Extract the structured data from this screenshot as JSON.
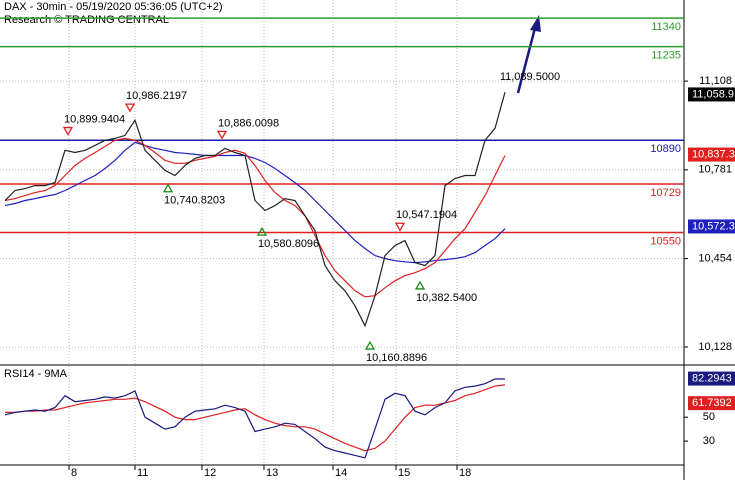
{
  "chart_data": [
    {
      "type": "line",
      "title": "DAX - 30min - 05/19/2020 05:36:05 (UTC+2)",
      "subtitle": "Research © TRADING CENTRAL",
      "x": [
        0,
        1,
        2,
        3,
        4,
        5,
        6,
        7,
        8,
        9,
        10,
        11,
        12,
        13,
        14,
        15,
        16,
        17,
        18,
        19,
        20,
        21,
        22,
        23,
        24,
        25,
        26,
        27,
        28,
        29,
        30,
        31,
        32,
        33,
        34,
        35,
        36,
        37,
        38,
        39,
        40,
        41,
        42,
        43,
        44,
        45,
        46,
        47,
        48,
        49,
        50
      ],
      "xlim": [
        -0.5,
        67.9
      ],
      "xticks": [
        {
          "value": 6.4,
          "label": "8"
        },
        {
          "value": 13,
          "label": "11"
        },
        {
          "value": 19.7,
          "label": "12"
        },
        {
          "value": 25.9,
          "label": "13"
        },
        {
          "value": 32.8,
          "label": "14"
        },
        {
          "value": 39.1,
          "label": "15"
        },
        {
          "value": 45.2,
          "label": "18"
        }
      ],
      "ylim": [
        10069,
        11407
      ],
      "yticks": [
        {
          "value": 11108,
          "label": "11,108"
        },
        {
          "value": 10781,
          "label": "10,781"
        },
        {
          "value": 10454,
          "label": "10,454"
        },
        {
          "value": 10128,
          "label": "10,128"
        }
      ],
      "grid": true,
      "series": [
        {
          "color": "#222222",
          "values": [
            10668,
            10705,
            10712,
            10723,
            10723,
            10734,
            10853,
            10845,
            10853,
            10871,
            10890,
            10897,
            10908,
            10964,
            10853,
            10816,
            10779,
            10760,
            10797,
            10823,
            10834,
            10834,
            10860,
            10845,
            10834,
            10668,
            10631,
            10649,
            10675,
            10668,
            10612,
            10557,
            10428,
            10372,
            10335,
            10280,
            10206,
            10317,
            10465,
            10502,
            10520,
            10439,
            10428,
            10465,
            10723,
            10749,
            10760,
            10760,
            10890,
            10934,
            11067
          ]
        },
        {
          "color": "#e02020",
          "values": [
            10668,
            10675,
            10686,
            10697,
            10705,
            10723,
            10760,
            10797,
            10823,
            10845,
            10867,
            10890,
            10897,
            10890,
            10871,
            10845,
            10816,
            10805,
            10805,
            10816,
            10823,
            10831,
            10845,
            10853,
            10842,
            10797,
            10742,
            10697,
            10668,
            10649,
            10612,
            10539,
            10465,
            10409,
            10372,
            10335,
            10313,
            10317,
            10346,
            10372,
            10391,
            10402,
            10417,
            10439,
            10483,
            10527,
            10564,
            10624,
            10686,
            10760,
            10834
          ]
        },
        {
          "color": "#2020c0",
          "values": [
            10649,
            10657,
            10668,
            10675,
            10683,
            10690,
            10705,
            10723,
            10742,
            10760,
            10786,
            10816,
            10853,
            10882,
            10871,
            10860,
            10853,
            10845,
            10842,
            10838,
            10834,
            10834,
            10834,
            10834,
            10834,
            10823,
            10808,
            10786,
            10760,
            10734,
            10705,
            10668,
            10631,
            10594,
            10557,
            10520,
            10491,
            10465,
            10454,
            10446,
            10442,
            10439,
            10442,
            10446,
            10450,
            10454,
            10461,
            10476,
            10502,
            10527,
            10564
          ]
        }
      ],
      "levels": [
        {
          "value": 11340,
          "color": "#2e9e2e"
        },
        {
          "value": 11235,
          "color": "#2e9e2e"
        },
        {
          "value": 10890,
          "color": "#1a1ab0"
        },
        {
          "value": 10729,
          "color": "#e02020"
        },
        {
          "value": 10550,
          "color": "#e02020"
        }
      ],
      "price_labels": [
        {
          "value": 11058.9,
          "label": "11,058.9",
          "color": "#000000"
        },
        {
          "value": 10837.3,
          "label": "10,837.3",
          "color": "#e02020"
        },
        {
          "value": 10572.3,
          "label": "10,572.3",
          "color": "#2020c0"
        }
      ],
      "annotations": [
        {
          "x": 6.3,
          "value": 10899.9404,
          "label": "10,899.9404",
          "kind": "high"
        },
        {
          "x": 12.5,
          "value": 10986.2197,
          "label": "10,986.2197",
          "kind": "high"
        },
        {
          "x": 21.7,
          "value": 10886.0098,
          "label": "10,886.0098",
          "kind": "high"
        },
        {
          "x": 16.3,
          "value": 10740.8203,
          "label": "10,740.8203",
          "kind": "low"
        },
        {
          "x": 25.7,
          "value": 10580.8096,
          "label": "10,580.8096",
          "kind": "low"
        },
        {
          "x": 39.5,
          "value": 10547.1904,
          "label": "10,547.1904",
          "kind": "high"
        },
        {
          "x": 41.5,
          "value": 10382.54,
          "label": "10,382.5400",
          "kind": "low"
        },
        {
          "x": 36.5,
          "value": 10160.8896,
          "label": "10,160.8896",
          "kind": "low"
        }
      ],
      "target": {
        "x": 52.5,
        "value": 11089.5,
        "label": "11,089.5000"
      }
    },
    {
      "type": "line",
      "title": "RSI14 - 9MA",
      "xlim": [
        -0.5,
        67.9
      ],
      "ylim": [
        10,
        92
      ],
      "yticks": [
        50,
        30
      ],
      "series": [
        {
          "color": "#1a1a80",
          "values": [
            52,
            54,
            55,
            56,
            55,
            58,
            68,
            63,
            64,
            65,
            67,
            66,
            68,
            72,
            50,
            45,
            40,
            42,
            50,
            55,
            56,
            57,
            60,
            58,
            55,
            38,
            40,
            42,
            45,
            44,
            38,
            32,
            25,
            22,
            20,
            18,
            16,
            40,
            65,
            70,
            68,
            55,
            52,
            58,
            62,
            72,
            75,
            76,
            78,
            82,
            82
          ]
        },
        {
          "color": "#e02020",
          "values": [
            54,
            54,
            55,
            55,
            56,
            56,
            58,
            60,
            62,
            63,
            64,
            65,
            65,
            66,
            63,
            59,
            55,
            50,
            48,
            48,
            50,
            52,
            54,
            56,
            57,
            52,
            48,
            45,
            43,
            42,
            42,
            40,
            36,
            32,
            28,
            25,
            22,
            24,
            30,
            40,
            50,
            58,
            60,
            60,
            62,
            64,
            68,
            70,
            73,
            76,
            77
          ]
        }
      ],
      "price_labels": [
        {
          "value": 82.2943,
          "color": "#1a1a80"
        },
        {
          "value": 61.7392,
          "color": "#e02020"
        }
      ]
    }
  ]
}
